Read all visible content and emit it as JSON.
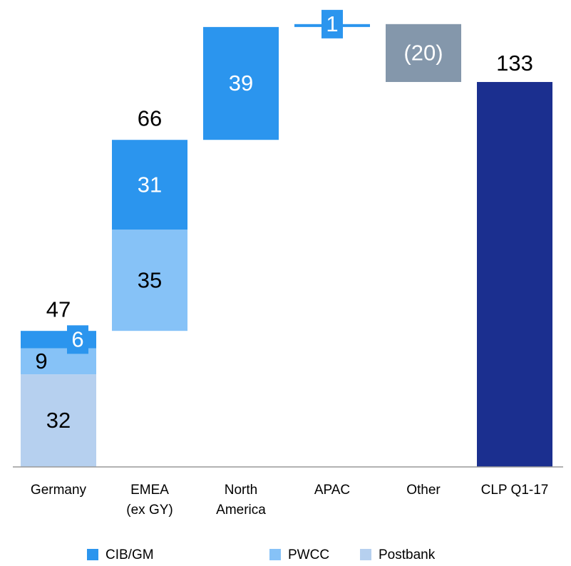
{
  "chart_data": {
    "type": "waterfall",
    "categories": [
      [
        "Germany"
      ],
      [
        "EMEA",
        "(ex GY)"
      ],
      [
        "North",
        "America"
      ],
      [
        "APAC"
      ],
      [
        "Other"
      ],
      [
        "CLP Q1-17"
      ]
    ],
    "series": [
      {
        "name": "Postbank",
        "color": "#b6d0ef",
        "values": [
          32,
          null,
          null,
          null,
          null,
          null
        ]
      },
      {
        "name": "PWCC",
        "color": "#86c2f7",
        "values": [
          9,
          35,
          null,
          null,
          null,
          null
        ]
      },
      {
        "name": "CIB/GM",
        "color": "#2b95ee",
        "values": [
          6,
          31,
          39,
          1,
          null,
          null
        ]
      },
      {
        "color": "#8497ab",
        "values": [
          null,
          null,
          null,
          null,
          -20,
          null
        ],
        "value_labels": [
          null,
          null,
          null,
          null,
          "(20)",
          null
        ]
      },
      {
        "color": "#1b2f8f",
        "values": [
          null,
          null,
          null,
          null,
          null,
          133
        ],
        "total": true
      }
    ],
    "totals": [
      47,
      66,
      null,
      null,
      null,
      null
    ],
    "legend_order": [
      2,
      1,
      0
    ]
  }
}
